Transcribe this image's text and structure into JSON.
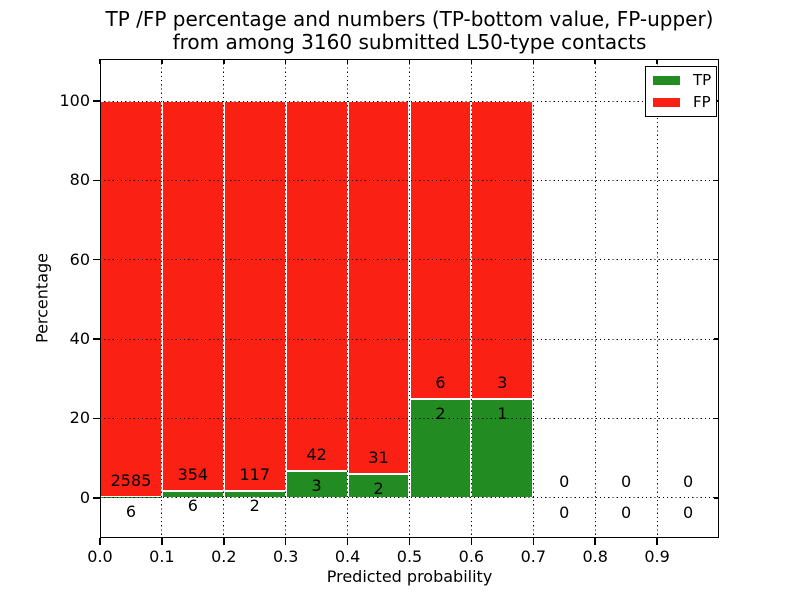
{
  "figure": {
    "title_line1": "TP /FP percentage and numbers (TP-bottom value, FP-upper)",
    "title_line2": "from among 3160 submitted L50-type contacts",
    "xlabel": "Predicted probability",
    "ylabel": "Percentage"
  },
  "legend": {
    "items": [
      {
        "name": "tp",
        "label": "TP",
        "color": "#228b22"
      },
      {
        "name": "fp",
        "label": "FP",
        "color": "#fa2014"
      }
    ]
  },
  "chart_data": {
    "type": "bar",
    "stacked": true,
    "title": "TP /FP percentage and numbers (TP-bottom value, FP-upper) from among 3160 submitted L50-type contacts",
    "xlabel": "Predicted probability",
    "ylabel": "Percentage",
    "total_submitted_contacts": 3160,
    "contact_type": "L50",
    "xlim": [
      0.0,
      1.0
    ],
    "ylim": [
      -10,
      110
    ],
    "grid": "dotted",
    "legend_position": "upper right",
    "x_ticks": [
      0.0,
      0.1,
      0.2,
      0.3,
      0.4,
      0.5,
      0.6,
      0.7,
      0.8,
      0.9
    ],
    "x_tick_labels": [
      "0.0",
      "0.1",
      "0.2",
      "0.3",
      "0.4",
      "0.5",
      "0.6",
      "0.7",
      "0.8",
      "0.9"
    ],
    "y_ticks": [
      0,
      20,
      40,
      60,
      80,
      100
    ],
    "y_tick_labels": [
      "0",
      "20",
      "40",
      "60",
      "80",
      "100"
    ],
    "colors": {
      "tp": "#228b22",
      "fp": "#fa2014",
      "bar_edge": "#ffffff"
    },
    "bins": [
      {
        "range": [
          0.0,
          0.1
        ],
        "tp_count": 6,
        "fp_count": 2585,
        "tp_pct": 0.23,
        "fp_pct": 99.77
      },
      {
        "range": [
          0.1,
          0.2
        ],
        "tp_count": 6,
        "fp_count": 354,
        "tp_pct": 1.67,
        "fp_pct": 98.33
      },
      {
        "range": [
          0.2,
          0.3
        ],
        "tp_count": 2,
        "fp_count": 117,
        "tp_pct": 1.68,
        "fp_pct": 98.32
      },
      {
        "range": [
          0.3,
          0.4
        ],
        "tp_count": 3,
        "fp_count": 42,
        "tp_pct": 6.67,
        "fp_pct": 93.33
      },
      {
        "range": [
          0.4,
          0.5
        ],
        "tp_count": 2,
        "fp_count": 31,
        "tp_pct": 6.06,
        "fp_pct": 93.94
      },
      {
        "range": [
          0.5,
          0.6
        ],
        "tp_count": 2,
        "fp_count": 6,
        "tp_pct": 25.0,
        "fp_pct": 75.0
      },
      {
        "range": [
          0.6,
          0.7
        ],
        "tp_count": 1,
        "fp_count": 3,
        "tp_pct": 25.0,
        "fp_pct": 75.0
      },
      {
        "range": [
          0.7,
          0.8
        ],
        "tp_count": 0,
        "fp_count": 0,
        "tp_pct": 0,
        "fp_pct": 0
      },
      {
        "range": [
          0.8,
          0.9
        ],
        "tp_count": 0,
        "fp_count": 0,
        "tp_pct": 0,
        "fp_pct": 0
      },
      {
        "range": [
          0.9,
          1.0
        ],
        "tp_count": 0,
        "fp_count": 0,
        "tp_pct": 0,
        "fp_pct": 0
      }
    ]
  }
}
